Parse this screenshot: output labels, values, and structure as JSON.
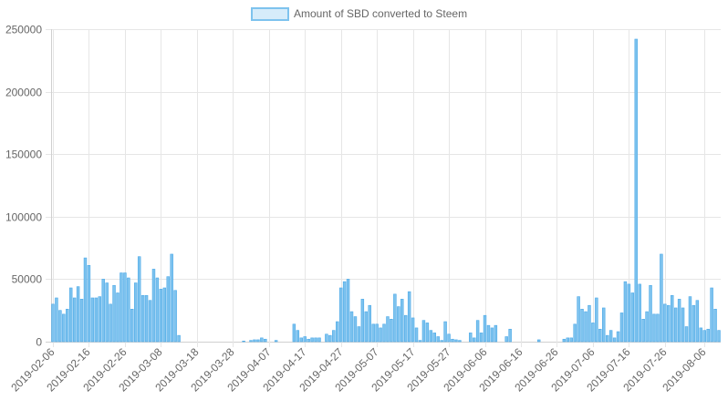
{
  "chart_data": {
    "type": "bar",
    "legend": {
      "label": "Amount of SBD converted to Steem",
      "position": "top"
    },
    "colors": {
      "bar_fill": "#7ec3ee",
      "bar_stroke": "#4aa8e8",
      "legend_fill": "#d6ecfa",
      "legend_stroke": "#7ec3ee"
    },
    "grid": true,
    "ylim": [
      0,
      250000
    ],
    "y_ticks": [
      "0",
      "50000",
      "100000",
      "150000",
      "200000",
      "250000"
    ],
    "x_ticks": [
      "2019-02-06",
      "2019-02-16",
      "2019-02-26",
      "2019-03-08",
      "2019-03-18",
      "2019-03-28",
      "2019-04-07",
      "2019-04-17",
      "2019-04-27",
      "2019-05-07",
      "2019-05-17",
      "2019-05-27",
      "2019-06-06",
      "2019-06-16",
      "2019-06-26",
      "2019-07-06",
      "2019-07-16",
      "2019-07-26",
      "2019-08-06"
    ],
    "start_date": "2019-02-06",
    "values": [
      30000,
      35000,
      25000,
      22000,
      26000,
      43000,
      35000,
      44000,
      34000,
      67000,
      61000,
      35000,
      35000,
      36000,
      50000,
      47000,
      30000,
      45000,
      39000,
      55000,
      55000,
      51000,
      26000,
      47000,
      68000,
      37000,
      37000,
      33000,
      58000,
      51000,
      42000,
      43000,
      52000,
      70000,
      41000,
      5000,
      0,
      0,
      0,
      0,
      0,
      0,
      0,
      0,
      0,
      0,
      0,
      0,
      0,
      0,
      0,
      0,
      0,
      500,
      0,
      1000,
      1500,
      1500,
      3000,
      2000,
      0,
      0,
      1000,
      0,
      0,
      0,
      0,
      14000,
      9000,
      3000,
      4000,
      2000,
      3000,
      3000,
      3000,
      0,
      6000,
      5000,
      9000,
      16000,
      43000,
      48000,
      50000,
      24000,
      20000,
      12000,
      34000,
      24000,
      29000,
      14000,
      14000,
      11000,
      14000,
      20000,
      18000,
      38000,
      28000,
      34000,
      21000,
      40000,
      19000,
      11000,
      1000,
      17000,
      15000,
      9000,
      7000,
      4000,
      1000,
      16000,
      6000,
      2000,
      1500,
      1000,
      0,
      0,
      7000,
      3000,
      17000,
      7000,
      21000,
      13000,
      11000,
      13000,
      0,
      0,
      4000,
      10000,
      0,
      0,
      0,
      0,
      0,
      0,
      0,
      1500,
      0,
      0,
      0,
      0,
      0,
      0,
      2000,
      3000,
      3000,
      14000,
      36000,
      26000,
      24000,
      29000,
      15000,
      35000,
      10000,
      27000,
      5000,
      9000,
      3000,
      8000,
      23000,
      48000,
      46000,
      39000,
      242000,
      46000,
      18000,
      24000,
      45000,
      22000,
      22000,
      70000,
      30000,
      29000,
      37000,
      27000,
      34000,
      27000,
      12000,
      36000,
      29000,
      33000,
      11000,
      9000,
      10000,
      43000,
      26000,
      9000
    ]
  }
}
